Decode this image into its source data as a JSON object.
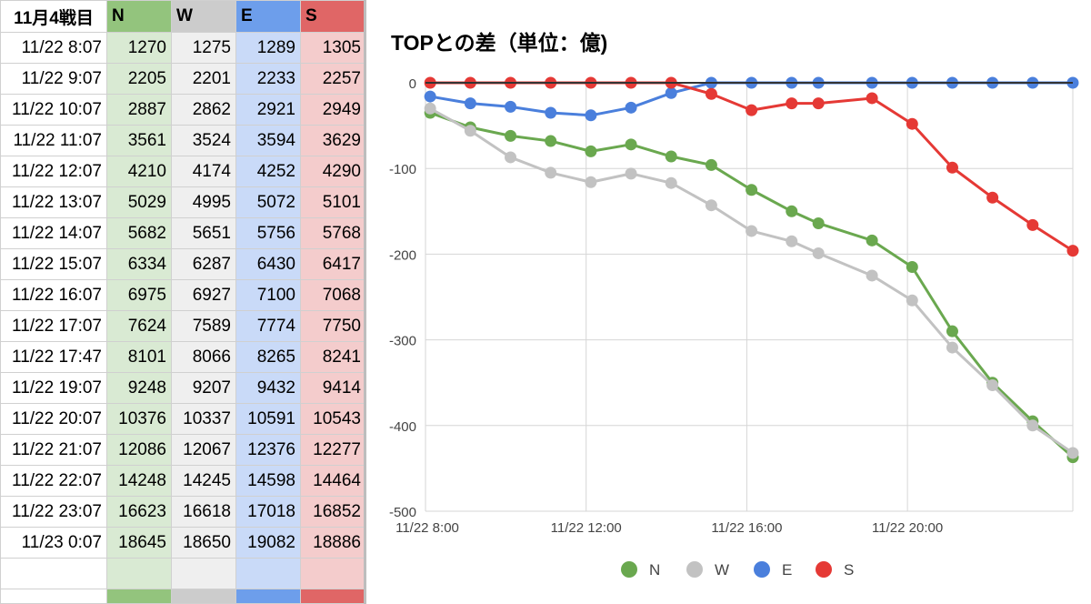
{
  "sheet": {
    "header": {
      "time": "11月4戦目",
      "N": "N",
      "W": "W",
      "E": "E",
      "S": "S"
    },
    "rows": [
      {
        "time": "11/22 8:07",
        "N": 1270,
        "W": 1275,
        "E": 1289,
        "S": 1305
      },
      {
        "time": "11/22 9:07",
        "N": 2205,
        "W": 2201,
        "E": 2233,
        "S": 2257
      },
      {
        "time": "11/22 10:07",
        "N": 2887,
        "W": 2862,
        "E": 2921,
        "S": 2949
      },
      {
        "time": "11/22 11:07",
        "N": 3561,
        "W": 3524,
        "E": 3594,
        "S": 3629
      },
      {
        "time": "11/22 12:07",
        "N": 4210,
        "W": 4174,
        "E": 4252,
        "S": 4290
      },
      {
        "time": "11/22 13:07",
        "N": 5029,
        "W": 4995,
        "E": 5072,
        "S": 5101
      },
      {
        "time": "11/22 14:07",
        "N": 5682,
        "W": 5651,
        "E": 5756,
        "S": 5768
      },
      {
        "time": "11/22 15:07",
        "N": 6334,
        "W": 6287,
        "E": 6430,
        "S": 6417
      },
      {
        "time": "11/22 16:07",
        "N": 6975,
        "W": 6927,
        "E": 7100,
        "S": 7068
      },
      {
        "time": "11/22 17:07",
        "N": 7624,
        "W": 7589,
        "E": 7774,
        "S": 7750
      },
      {
        "time": "11/22 17:47",
        "N": 8101,
        "W": 8066,
        "E": 8265,
        "S": 8241
      },
      {
        "time": "11/22 19:07",
        "N": 9248,
        "W": 9207,
        "E": 9432,
        "S": 9414
      },
      {
        "time": "11/22 20:07",
        "N": 10376,
        "W": 10337,
        "E": 10591,
        "S": 10543
      },
      {
        "time": "11/22 21:07",
        "N": 12086,
        "W": 12067,
        "E": 12376,
        "S": 12277
      },
      {
        "time": "11/22 22:07",
        "N": 14248,
        "W": 14245,
        "E": 14598,
        "S": 14464
      },
      {
        "time": "11/22 23:07",
        "N": 16623,
        "W": 16618,
        "E": 17018,
        "S": 16852
      },
      {
        "time": "11/23 0:07",
        "N": 18645,
        "W": 18650,
        "E": 19082,
        "S": 18886
      }
    ]
  },
  "chart_data": {
    "type": "line",
    "title": "TOPとの差（単位：億)",
    "x": [
      "11/22 8:07",
      "11/22 9:07",
      "11/22 10:07",
      "11/22 11:07",
      "11/22 12:07",
      "11/22 13:07",
      "11/22 14:07",
      "11/22 15:07",
      "11/22 16:07",
      "11/22 17:07",
      "11/22 17:47",
      "11/22 19:07",
      "11/22 20:07",
      "11/22 21:07",
      "11/22 22:07",
      "11/22 23:07",
      "11/23 0:07"
    ],
    "x_hours": [
      8.117,
      9.117,
      10.117,
      11.117,
      12.117,
      13.117,
      14.117,
      15.117,
      16.117,
      17.117,
      17.783,
      19.117,
      20.117,
      21.117,
      22.117,
      23.117,
      24.117
    ],
    "xlim": [
      8,
      24.117
    ],
    "xticks": [
      {
        "label": "11/22 8:00",
        "hour": 8
      },
      {
        "label": "11/22 12:00",
        "hour": 12
      },
      {
        "label": "11/22 16:00",
        "hour": 16
      },
      {
        "label": "11/22 20:00",
        "hour": 20
      }
    ],
    "ylim": [
      -500,
      0
    ],
    "yticks": [
      0,
      -100,
      -200,
      -300,
      -400,
      -500
    ],
    "series": [
      {
        "name": "N",
        "color": "#6aa84f",
        "values": [
          -35,
          -52,
          -62,
          -68,
          -80,
          -72,
          -86,
          -96,
          -125,
          -150,
          -164,
          -184,
          -215,
          -290,
          -350,
          -395,
          -437
        ]
      },
      {
        "name": "W",
        "color": "#c2c2c2",
        "values": [
          -30,
          -56,
          -87,
          -105,
          -116,
          -106,
          -117,
          -143,
          -173,
          -185,
          -199,
          -225,
          -254,
          -309,
          -353,
          -400,
          -432
        ]
      },
      {
        "name": "E",
        "color": "#4a7fdc",
        "values": [
          -16,
          -24,
          -28,
          -35,
          -38,
          -29,
          -12,
          0,
          0,
          0,
          0,
          0,
          0,
          0,
          0,
          0,
          0
        ]
      },
      {
        "name": "S",
        "color": "#e53935",
        "values": [
          0,
          0,
          0,
          0,
          0,
          0,
          0,
          -13,
          -32,
          -24,
          -24,
          -18,
          -48,
          -99,
          -134,
          -166,
          -196
        ]
      }
    ],
    "legend": "bottom",
    "grid": true
  }
}
